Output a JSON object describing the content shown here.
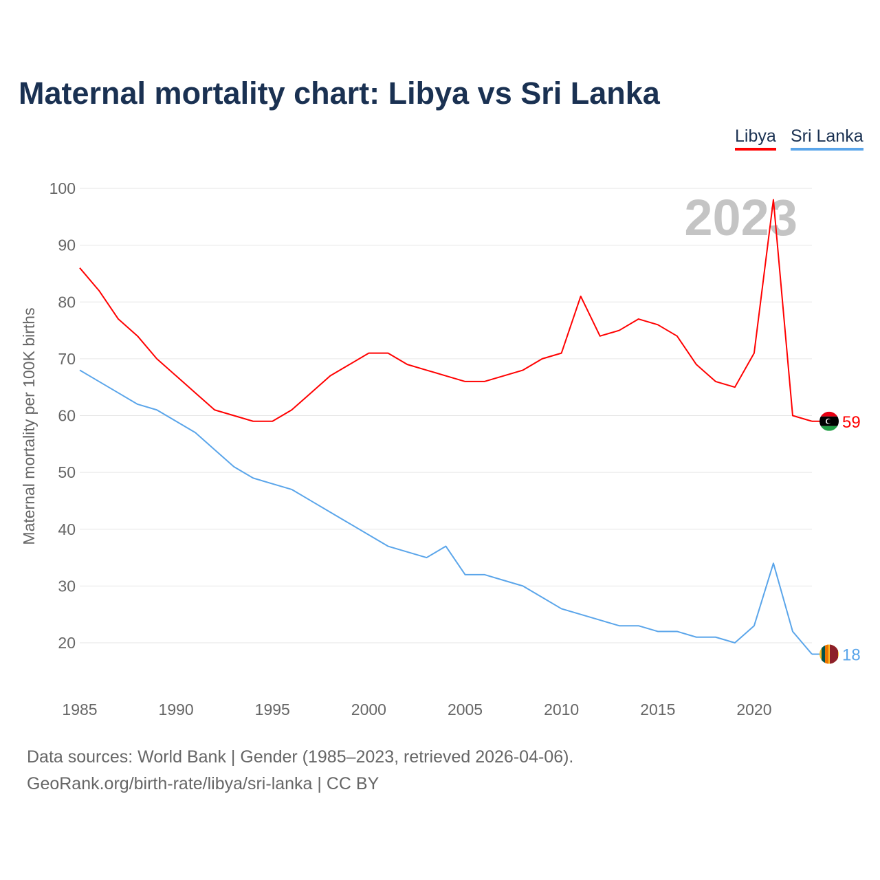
{
  "chart_data": {
    "type": "line",
    "title": "Maternal mortality chart: Libya vs Sri Lanka",
    "xlabel": "",
    "ylabel": "Maternal mortality per 100K births",
    "xlim": [
      1985,
      2023
    ],
    "ylim": [
      20,
      100
    ],
    "x_ticks": [
      "1985",
      "1990",
      "1995",
      "2000",
      "2005",
      "2010",
      "2015",
      "2020"
    ],
    "y_ticks": [
      "20",
      "30",
      "40",
      "50",
      "60",
      "70",
      "80",
      "90",
      "100"
    ],
    "grid": true,
    "legend_position": "top-right",
    "year_label": "2023",
    "x": [
      1985,
      1986,
      1987,
      1988,
      1989,
      1990,
      1991,
      1992,
      1993,
      1994,
      1995,
      1996,
      1997,
      1998,
      1999,
      2000,
      2001,
      2002,
      2003,
      2004,
      2005,
      2006,
      2007,
      2008,
      2009,
      2010,
      2011,
      2012,
      2013,
      2014,
      2015,
      2016,
      2017,
      2018,
      2019,
      2020,
      2021,
      2022,
      2023
    ],
    "series": [
      {
        "name": "Libya",
        "color": "#ff0000",
        "end_label": "59",
        "values": [
          86,
          82,
          77,
          74,
          70,
          67,
          64,
          61,
          60,
          59,
          59,
          61,
          64,
          67,
          69,
          71,
          71,
          69,
          68,
          67,
          66,
          66,
          67,
          68,
          70,
          71,
          81,
          74,
          75,
          77,
          76,
          74,
          69,
          66,
          65,
          71,
          98,
          60,
          59
        ]
      },
      {
        "name": "Sri Lanka",
        "color": "#5aa5ea",
        "end_label": "18",
        "values": [
          68,
          66,
          64,
          62,
          61,
          59,
          57,
          54,
          51,
          49,
          48,
          47,
          45,
          43,
          41,
          39,
          37,
          36,
          35,
          37,
          32,
          32,
          31,
          30,
          28,
          26,
          25,
          24,
          23,
          23,
          22,
          22,
          21,
          21,
          20,
          23,
          34,
          22,
          18
        ]
      }
    ]
  },
  "footer": {
    "line1": "Data sources: World Bank | Gender (1985–2023, retrieved 2026-04-06).",
    "line2": "GeoRank.org/birth-rate/libya/sri-lanka | CC BY"
  }
}
